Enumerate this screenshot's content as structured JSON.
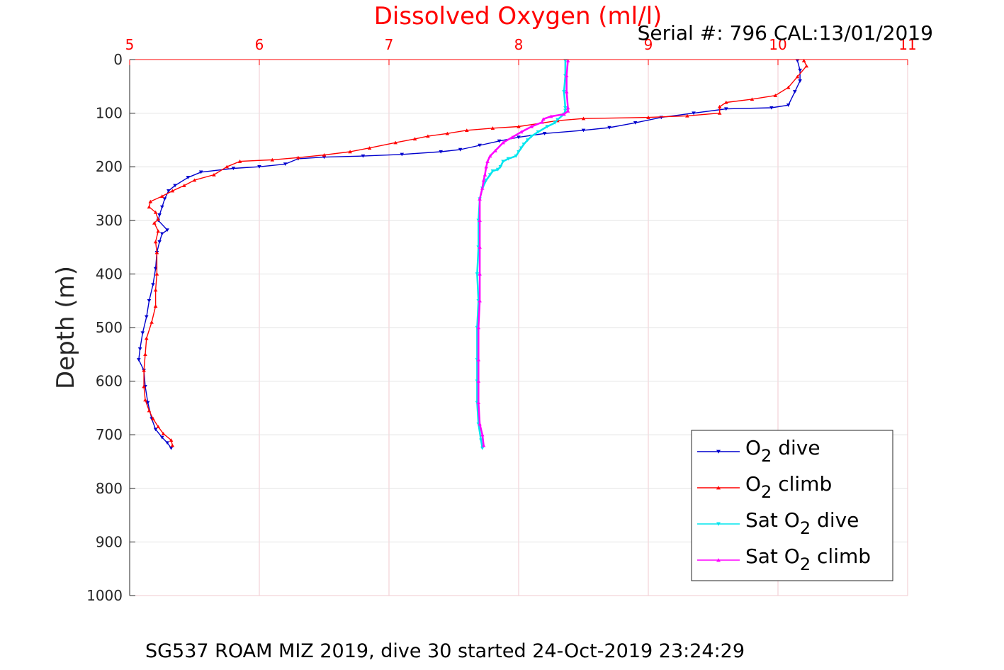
{
  "chart_data": {
    "type": "line",
    "title": "Dissolved Oxygen (ml/l)",
    "subtitle": "Serial #: 796  CAL:13/01/2019",
    "caption": "SG537 ROAM MIZ 2019, dive 30 started 24-Oct-2019 23:24:29",
    "xlabel": "",
    "ylabel": "Depth (m)",
    "xlim": [
      5,
      11
    ],
    "ylim": [
      0,
      1000
    ],
    "y_reversed": true,
    "x_axis_position": "top",
    "x_ticks": [
      "5",
      "6",
      "7",
      "8",
      "9",
      "10",
      "11"
    ],
    "y_ticks": [
      "0",
      "100",
      "200",
      "300",
      "400",
      "500",
      "600",
      "700",
      "800",
      "900",
      "1000"
    ],
    "grid": true,
    "legend_position": "bottom-right",
    "colors": {
      "title": "#ff0000",
      "x_ticks": "#ff0000",
      "grid": "#f2c9cf"
    },
    "series": [
      {
        "name": "O2 dive",
        "legend_label": {
          "pre": "O",
          "sub": "2",
          "post": " dive"
        },
        "color": "#0000cd",
        "marker": "triangle-down",
        "points": [
          [
            10.15,
            2
          ],
          [
            10.17,
            20
          ],
          [
            10.17,
            40
          ],
          [
            10.13,
            60
          ],
          [
            10.08,
            85
          ],
          [
            9.95,
            90
          ],
          [
            9.6,
            92
          ],
          [
            9.35,
            100
          ],
          [
            9.1,
            108
          ],
          [
            8.9,
            118
          ],
          [
            8.7,
            127
          ],
          [
            8.5,
            132
          ],
          [
            8.2,
            138
          ],
          [
            8.0,
            145
          ],
          [
            7.85,
            152
          ],
          [
            7.7,
            160
          ],
          [
            7.55,
            168
          ],
          [
            7.4,
            172
          ],
          [
            7.1,
            177
          ],
          [
            6.8,
            180
          ],
          [
            6.5,
            182
          ],
          [
            6.3,
            185
          ],
          [
            6.2,
            195
          ],
          [
            6.0,
            200
          ],
          [
            5.8,
            203
          ],
          [
            5.55,
            210
          ],
          [
            5.45,
            220
          ],
          [
            5.35,
            235
          ],
          [
            5.3,
            245
          ],
          [
            5.27,
            260
          ],
          [
            5.25,
            275
          ],
          [
            5.23,
            290
          ],
          [
            5.22,
            300
          ],
          [
            5.29,
            318
          ],
          [
            5.25,
            325
          ],
          [
            5.23,
            340
          ],
          [
            5.21,
            360
          ],
          [
            5.2,
            390
          ],
          [
            5.18,
            420
          ],
          [
            5.15,
            450
          ],
          [
            5.13,
            480
          ],
          [
            5.1,
            510
          ],
          [
            5.08,
            540
          ],
          [
            5.07,
            560
          ],
          [
            5.11,
            580
          ],
          [
            5.12,
            610
          ],
          [
            5.14,
            640
          ],
          [
            5.17,
            670
          ],
          [
            5.2,
            690
          ],
          [
            5.25,
            705
          ],
          [
            5.29,
            715
          ],
          [
            5.32,
            725
          ]
        ]
      },
      {
        "name": "O2 climb",
        "legend_label": {
          "pre": "O",
          "sub": "2",
          "post": " climb"
        },
        "color": "#ff0000",
        "marker": "triangle-up",
        "points": [
          [
            10.2,
            2
          ],
          [
            10.22,
            12
          ],
          [
            10.15,
            32
          ],
          [
            10.08,
            52
          ],
          [
            9.98,
            67
          ],
          [
            9.8,
            74
          ],
          [
            9.6,
            80
          ],
          [
            9.55,
            88
          ],
          [
            9.55,
            100
          ],
          [
            9.3,
            105
          ],
          [
            9.0,
            108
          ],
          [
            8.5,
            110
          ],
          [
            8.3,
            114
          ],
          [
            8.0,
            125
          ],
          [
            7.8,
            128
          ],
          [
            7.6,
            132
          ],
          [
            7.45,
            138
          ],
          [
            7.3,
            143
          ],
          [
            7.2,
            148
          ],
          [
            7.05,
            155
          ],
          [
            6.85,
            165
          ],
          [
            6.7,
            172
          ],
          [
            6.5,
            178
          ],
          [
            6.3,
            183
          ],
          [
            6.1,
            187
          ],
          [
            5.85,
            190
          ],
          [
            5.75,
            200
          ],
          [
            5.65,
            215
          ],
          [
            5.5,
            225
          ],
          [
            5.42,
            235
          ],
          [
            5.33,
            245
          ],
          [
            5.25,
            255
          ],
          [
            5.16,
            265
          ],
          [
            5.15,
            275
          ],
          [
            5.2,
            285
          ],
          [
            5.22,
            298
          ],
          [
            5.19,
            305
          ],
          [
            5.22,
            320
          ],
          [
            5.2,
            340
          ],
          [
            5.21,
            360
          ],
          [
            5.21,
            400
          ],
          [
            5.2,
            430
          ],
          [
            5.2,
            460
          ],
          [
            5.17,
            490
          ],
          [
            5.13,
            520
          ],
          [
            5.12,
            550
          ],
          [
            5.11,
            580
          ],
          [
            5.11,
            610
          ],
          [
            5.12,
            635
          ],
          [
            5.15,
            655
          ],
          [
            5.18,
            670
          ],
          [
            5.22,
            685
          ],
          [
            5.26,
            698
          ],
          [
            5.32,
            710
          ],
          [
            5.33,
            720
          ]
        ]
      },
      {
        "name": "Sat O2 dive",
        "legend_label": {
          "pre": "Sat O",
          "sub": "2",
          "post": " dive"
        },
        "color": "#00e5ee",
        "marker": "triangle-down",
        "points": [
          [
            8.36,
            2
          ],
          [
            8.36,
            30
          ],
          [
            8.35,
            60
          ],
          [
            8.36,
            90
          ],
          [
            8.36,
            95
          ],
          [
            8.35,
            102
          ],
          [
            8.3,
            112
          ],
          [
            8.28,
            118
          ],
          [
            8.22,
            125
          ],
          [
            8.15,
            135
          ],
          [
            8.1,
            143
          ],
          [
            8.07,
            150
          ],
          [
            8.04,
            158
          ],
          [
            8.02,
            165
          ],
          [
            8.0,
            172
          ],
          [
            7.98,
            180
          ],
          [
            7.92,
            185
          ],
          [
            7.88,
            190
          ],
          [
            7.86,
            200
          ],
          [
            7.84,
            205
          ],
          [
            7.8,
            208
          ],
          [
            7.78,
            215
          ],
          [
            7.75,
            225
          ],
          [
            7.72,
            240
          ],
          [
            7.7,
            260
          ],
          [
            7.69,
            300
          ],
          [
            7.69,
            350
          ],
          [
            7.68,
            400
          ],
          [
            7.69,
            450
          ],
          [
            7.68,
            500
          ],
          [
            7.68,
            560
          ],
          [
            7.68,
            600
          ],
          [
            7.68,
            640
          ],
          [
            7.69,
            680
          ],
          [
            7.71,
            710
          ],
          [
            7.72,
            725
          ]
        ]
      },
      {
        "name": "Sat O2 climb",
        "legend_label": {
          "pre": "Sat O",
          "sub": "2",
          "post": " climb"
        },
        "color": "#ff00ff",
        "marker": "triangle-up",
        "points": [
          [
            8.38,
            2
          ],
          [
            8.37,
            30
          ],
          [
            8.37,
            60
          ],
          [
            8.38,
            90
          ],
          [
            8.38,
            96
          ],
          [
            8.35,
            102
          ],
          [
            8.25,
            106
          ],
          [
            8.19,
            111
          ],
          [
            8.18,
            117
          ],
          [
            8.1,
            125
          ],
          [
            8.02,
            135
          ],
          [
            7.95,
            145
          ],
          [
            7.88,
            155
          ],
          [
            7.82,
            170
          ],
          [
            7.78,
            180
          ],
          [
            7.76,
            190
          ],
          [
            7.75,
            200
          ],
          [
            7.74,
            215
          ],
          [
            7.73,
            225
          ],
          [
            7.72,
            240
          ],
          [
            7.7,
            260
          ],
          [
            7.7,
            300
          ],
          [
            7.7,
            350
          ],
          [
            7.7,
            400
          ],
          [
            7.7,
            450
          ],
          [
            7.69,
            500
          ],
          [
            7.69,
            560
          ],
          [
            7.69,
            600
          ],
          [
            7.69,
            640
          ],
          [
            7.7,
            680
          ],
          [
            7.72,
            700
          ],
          [
            7.73,
            720
          ]
        ]
      }
    ]
  }
}
